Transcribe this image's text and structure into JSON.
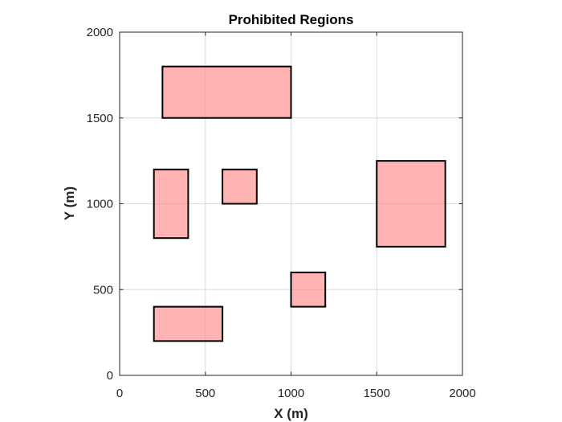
{
  "chart_data": {
    "type": "rectangles",
    "title": "Prohibited Regions",
    "xlabel": "X (m)",
    "ylabel": "Y (m)",
    "xlim": [
      0,
      2000
    ],
    "ylim": [
      0,
      2000
    ],
    "xticks": [
      0,
      500,
      1000,
      1500,
      2000
    ],
    "yticks": [
      0,
      500,
      1000,
      1500,
      2000
    ],
    "xtick_labels": [
      "0",
      "500",
      "1000",
      "1500",
      "2000"
    ],
    "ytick_labels": [
      "0",
      "500",
      "1000",
      "1500",
      "2000"
    ],
    "grid": true,
    "box": true,
    "fill_color": "#ff8080",
    "fill_opacity": 0.6,
    "edge_color": "#000000",
    "grid_color": "#dcdcdc",
    "regions": [
      {
        "x": [
          250,
          1000
        ],
        "y": [
          1500,
          1800
        ]
      },
      {
        "x": [
          200,
          400
        ],
        "y": [
          800,
          1200
        ]
      },
      {
        "x": [
          600,
          800
        ],
        "y": [
          1000,
          1200
        ]
      },
      {
        "x": [
          1500,
          1900
        ],
        "y": [
          750,
          1250
        ]
      },
      {
        "x": [
          1000,
          1200
        ],
        "y": [
          400,
          600
        ]
      },
      {
        "x": [
          200,
          600
        ],
        "y": [
          200,
          400
        ]
      }
    ]
  }
}
